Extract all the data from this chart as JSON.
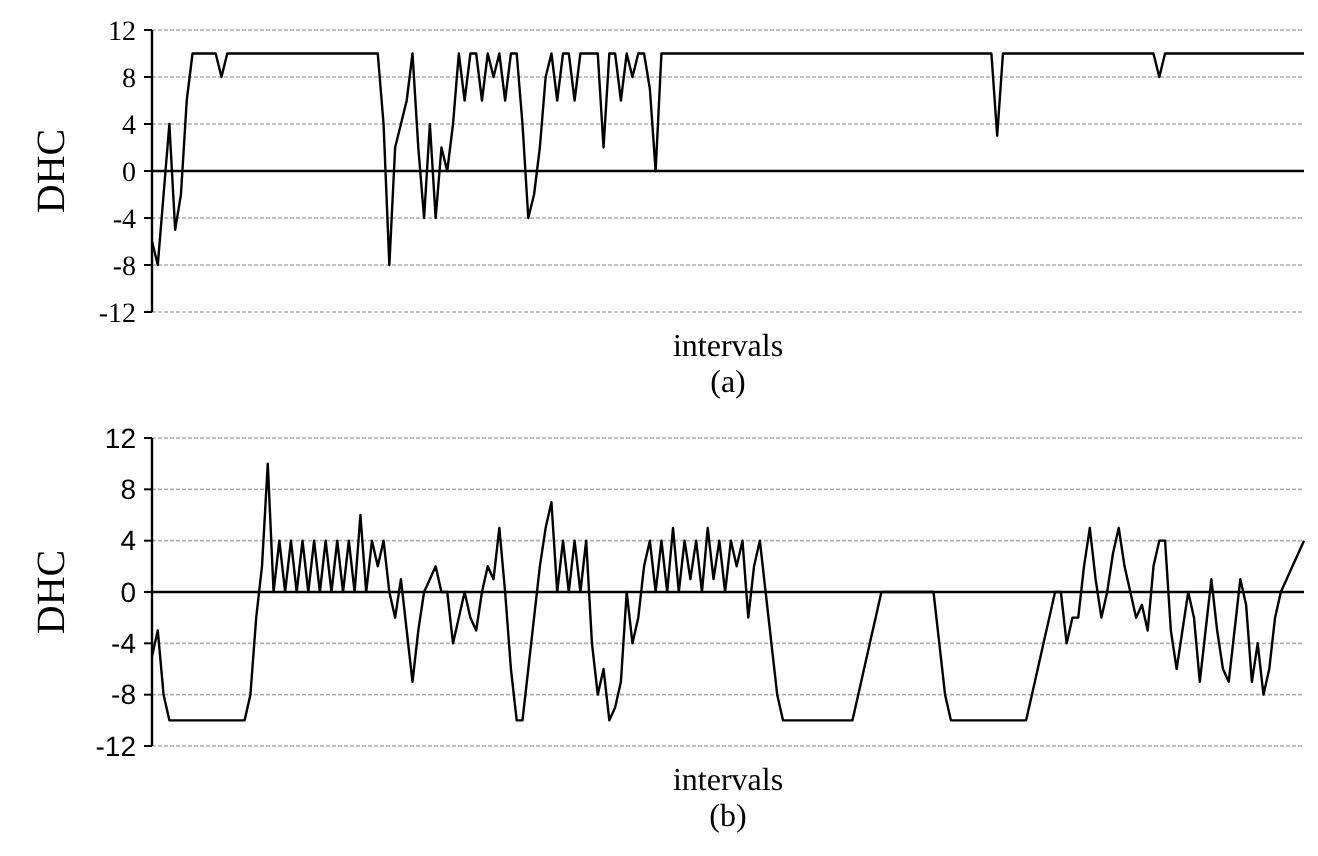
{
  "chart_data": [
    {
      "type": "line",
      "title": "(a)",
      "xlabel": "intervals",
      "ylabel": "DHC",
      "ylim": [
        -12,
        12
      ],
      "yticks": [
        -12,
        -8,
        -4,
        0,
        4,
        8,
        12
      ],
      "grid": "y",
      "tick_labels": "y",
      "categories": [
        null,
        null,
        null,
        null,
        null,
        null,
        null,
        null,
        null,
        null,
        null,
        null,
        null,
        null,
        null,
        null,
        null,
        null,
        null,
        null,
        null,
        null,
        null,
        null,
        null,
        null,
        null,
        null,
        null,
        null,
        null,
        null,
        null,
        null,
        null,
        null,
        null,
        null,
        null,
        null,
        null,
        null,
        null,
        null,
        null,
        null,
        null,
        null,
        null,
        null,
        null,
        null,
        null,
        null,
        null,
        null,
        null,
        null,
        null,
        null,
        null,
        null,
        null,
        null,
        null,
        null,
        null,
        null,
        null,
        null,
        null,
        null,
        null,
        null,
        null,
        null,
        null,
        null,
        null,
        null,
        null,
        null,
        null,
        null,
        null,
        null,
        null,
        null,
        null,
        null,
        null,
        null,
        null,
        null,
        null,
        null,
        null,
        null,
        null,
        null,
        null,
        null,
        null,
        null,
        null,
        null,
        null,
        null,
        null,
        null,
        null,
        null,
        null,
        null,
        null,
        null,
        null,
        null,
        null,
        null,
        null,
        null,
        null,
        null,
        null,
        null,
        null,
        null,
        null,
        null,
        null,
        null,
        null,
        null,
        null,
        null,
        null,
        null,
        null,
        null,
        null,
        null,
        null,
        null,
        null,
        null,
        null,
        null,
        null,
        null,
        null,
        null,
        null,
        null,
        null,
        null,
        null,
        null,
        null,
        null,
        null,
        null,
        null,
        null,
        null,
        null,
        null,
        null,
        null,
        null,
        null,
        null,
        null,
        null,
        null,
        null,
        null,
        null,
        null,
        null,
        null,
        null,
        null,
        null,
        null,
        null,
        null,
        null,
        null,
        null,
        null,
        null,
        null,
        null,
        null,
        null,
        null,
        null,
        null,
        null
      ],
      "series": [
        {
          "color": "#000000",
          "values": [
            -6,
            -8,
            -2,
            4,
            -5,
            -2,
            6,
            10,
            10,
            10,
            10,
            10,
            8,
            10,
            10,
            10,
            10,
            10,
            10,
            10,
            10,
            10,
            10,
            10,
            10,
            10,
            10,
            10,
            10,
            10,
            10,
            10,
            10,
            10,
            10,
            10,
            10,
            10,
            10,
            10,
            4,
            -8,
            2,
            4,
            6,
            10,
            2,
            -4,
            4,
            -4,
            2,
            0,
            4,
            10,
            6,
            10,
            10,
            6,
            10,
            8,
            10,
            6,
            10,
            10,
            4,
            -4,
            -2,
            2,
            8,
            10,
            6,
            10,
            10,
            6,
            10,
            10,
            10,
            10,
            2,
            10,
            10,
            6,
            10,
            8,
            10,
            10,
            7,
            0,
            10,
            10,
            10,
            10,
            10,
            10,
            10,
            10,
            10,
            10,
            10,
            10,
            10,
            10,
            10,
            10,
            10,
            10,
            10,
            10,
            10,
            10,
            10,
            10,
            10,
            10,
            10,
            10,
            10,
            10,
            10,
            10,
            10,
            10,
            10,
            10,
            10,
            10,
            10,
            10,
            10,
            10,
            10,
            10,
            10,
            10,
            10,
            10,
            10,
            10,
            10,
            10,
            10,
            10,
            10,
            10,
            10,
            10,
            3,
            10,
            10,
            10,
            10,
            10,
            10,
            10,
            10,
            10,
            10,
            10,
            10,
            10,
            10,
            10,
            10,
            10,
            10,
            10,
            10,
            10,
            10,
            10,
            10,
            10,
            10,
            10,
            8,
            10,
            10,
            10,
            10,
            10,
            10,
            10,
            10,
            10,
            10,
            10,
            10,
            10,
            10,
            10,
            10,
            10,
            10,
            10,
            10,
            10,
            10,
            10,
            10,
            10
          ]
        }
      ]
    },
    {
      "type": "line",
      "title": "(b)",
      "xlabel": "intervals",
      "ylabel": "DHC",
      "ylim": [
        -12,
        12
      ],
      "yticks": [
        -12,
        -8,
        -4,
        0,
        4,
        8,
        12
      ],
      "grid": "y",
      "tick_labels": "y",
      "categories": [
        null,
        null,
        null,
        null,
        null,
        null,
        null,
        null,
        null,
        null,
        null,
        null,
        null,
        null,
        null,
        null,
        null,
        null,
        null,
        null,
        null,
        null,
        null,
        null,
        null,
        null,
        null,
        null,
        null,
        null,
        null,
        null,
        null,
        null,
        null,
        null,
        null,
        null,
        null,
        null,
        null,
        null,
        null,
        null,
        null,
        null,
        null,
        null,
        null,
        null,
        null,
        null,
        null,
        null,
        null,
        null,
        null,
        null,
        null,
        null,
        null,
        null,
        null,
        null,
        null,
        null,
        null,
        null,
        null,
        null,
        null,
        null,
        null,
        null,
        null,
        null,
        null,
        null,
        null,
        null,
        null,
        null,
        null,
        null,
        null,
        null,
        null,
        null,
        null,
        null,
        null,
        null,
        null,
        null,
        null,
        null,
        null,
        null,
        null,
        null,
        null,
        null,
        null,
        null,
        null,
        null,
        null,
        null,
        null,
        null,
        null,
        null,
        null,
        null,
        null,
        null,
        null,
        null,
        null,
        null,
        null,
        null,
        null,
        null,
        null,
        null,
        null,
        null,
        null,
        null,
        null,
        null,
        null,
        null,
        null,
        null,
        null,
        null,
        null,
        null,
        null,
        null,
        null,
        null,
        null,
        null,
        null,
        null,
        null,
        null,
        null,
        null,
        null,
        null,
        null,
        null,
        null,
        null,
        null,
        null,
        null,
        null,
        null,
        null,
        null,
        null,
        null,
        null,
        null,
        null,
        null,
        null,
        null,
        null,
        null,
        null,
        null,
        null,
        null,
        null,
        null,
        null,
        null,
        null,
        null,
        null,
        null,
        null,
        null,
        null,
        null,
        null,
        null,
        null,
        null,
        null,
        null,
        null,
        null,
        null
      ],
      "series": [
        {
          "color": "#000000",
          "values": [
            -5,
            -3,
            -8,
            -10,
            -10,
            -10,
            -10,
            -10,
            -10,
            -10,
            -10,
            -10,
            -10,
            -10,
            -10,
            -10,
            -10,
            -8,
            -2,
            2,
            10,
            0,
            4,
            0,
            4,
            0,
            4,
            0,
            4,
            0,
            4,
            0,
            4,
            0,
            4,
            0,
            6,
            0,
            4,
            2,
            4,
            0,
            -2,
            1,
            -3,
            -7,
            -3,
            0,
            1,
            2,
            0,
            0,
            -4,
            -2,
            0,
            -2,
            -3,
            0,
            2,
            1,
            5,
            0,
            -6,
            -10,
            -10,
            -6,
            -2,
            2,
            5,
            7,
            0,
            4,
            0,
            4,
            0,
            4,
            -4,
            -8,
            -6,
            -10,
            -9,
            -7,
            0,
            -4,
            -2,
            2,
            4,
            0,
            4,
            0,
            5,
            0,
            4,
            1,
            4,
            0,
            5,
            1,
            4,
            0,
            4,
            2,
            4,
            -2,
            2,
            4,
            0,
            -4,
            -8,
            -10,
            -10,
            -10,
            -10,
            -10,
            -10,
            -10,
            -10,
            -10,
            -10,
            -10,
            -10,
            -10,
            -8,
            -6,
            -4,
            -2,
            0,
            0,
            0,
            0,
            0,
            0,
            0,
            0,
            0,
            0,
            -4,
            -8,
            -10,
            -10,
            -10,
            -10,
            -10,
            -10,
            -10,
            -10,
            -10,
            -10,
            -10,
            -10,
            -10,
            -10,
            -8,
            -6,
            -4,
            -2,
            0,
            0,
            -4,
            -2,
            -2,
            2,
            5,
            1,
            -2,
            0,
            3,
            5,
            2,
            0,
            -2,
            -1,
            -3,
            2,
            4,
            4,
            -3,
            -6,
            -3,
            0,
            -2,
            -7,
            -3,
            1,
            -3,
            -6,
            -7,
            -3,
            1,
            -1,
            -7,
            -4,
            -8,
            -6,
            -2,
            0,
            1,
            2,
            3,
            4
          ]
        }
      ]
    }
  ]
}
